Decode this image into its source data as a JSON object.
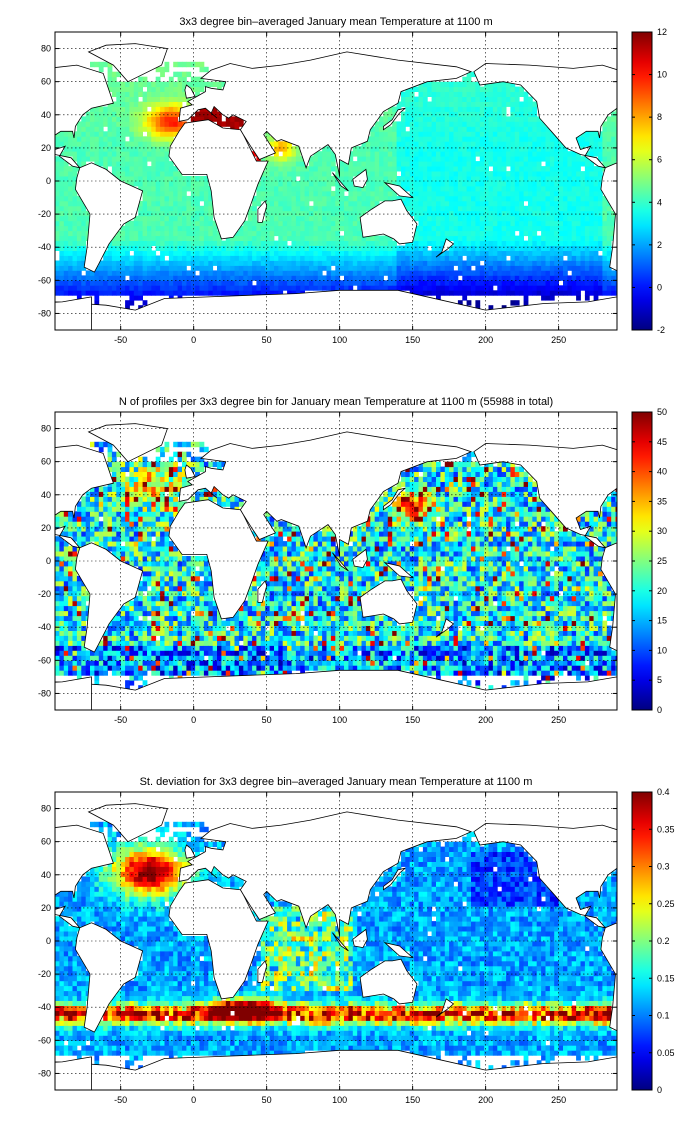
{
  "panels": [
    {
      "title": "3x3 degree bin–averaged January mean Temperature at 1100 m",
      "colorbar": {
        "min": -2,
        "max": 12,
        "ticks": [
          "-2",
          "0",
          "2",
          "4",
          "6",
          "8",
          "10",
          "12"
        ]
      },
      "field": "temperature"
    },
    {
      "title": "N of profiles per 3x3 degree bin for January mean Temperature at 1100 m (55988 in total)",
      "colorbar": {
        "min": 0,
        "max": 50,
        "ticks": [
          "0",
          "5",
          "10",
          "15",
          "20",
          "25",
          "30",
          "35",
          "40",
          "45",
          "50"
        ]
      },
      "field": "count"
    },
    {
      "title": "St. deviation for 3x3 degree bin–averaged January mean Temperature at 1100 m",
      "colorbar": {
        "min": 0,
        "max": 0.4,
        "ticks": [
          "0",
          "0.05",
          "0.1",
          "0.15",
          "0.2",
          "0.25",
          "0.3",
          "0.35",
          "0.4"
        ]
      },
      "field": "stdev"
    }
  ],
  "axes": {
    "x_range": [
      -95,
      290
    ],
    "y_range": [
      -90,
      90
    ],
    "x_ticks": [
      "-50",
      "0",
      "50",
      "100",
      "150",
      "200",
      "250"
    ],
    "y_ticks": [
      "-80",
      "-60",
      "-40",
      "-20",
      "0",
      "20",
      "40",
      "60",
      "80"
    ]
  },
  "colormap": "jet"
}
